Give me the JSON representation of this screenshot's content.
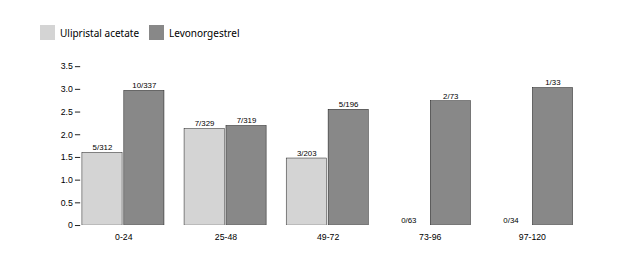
{
  "chart_data": {
    "type": "bar",
    "categories": [
      "0-24",
      "25-48",
      "49-72",
      "73-96",
      "97-120"
    ],
    "series": [
      {
        "name": "Ulipristal acetate",
        "color": "#d4d4d4",
        "values": [
          1.6026,
          2.1277,
          1.4778,
          0.0,
          0.0
        ],
        "value_labels": [
          "5/312",
          "7/329",
          "3/203",
          "0/63",
          "0/34"
        ]
      },
      {
        "name": "Levonorgestrel",
        "color": "#888888",
        "values": [
          2.9674,
          2.1942,
          2.551,
          2.7397,
          3.0303
        ],
        "value_labels": [
          "10/337",
          "7/319",
          "5/196",
          "2/73",
          "1/33"
        ]
      }
    ],
    "ylim": [
      0,
      3.5
    ],
    "yticks": [
      0,
      0.5,
      {
        "value": 1.0,
        "label": "1.0"
      },
      1.5,
      {
        "value": 2.0,
        "label": "2.0"
      },
      2.5,
      {
        "value": 3.0,
        "label": "3.0"
      },
      3.5
    ],
    "grid": false,
    "legend": "top",
    "data_labels": true
  }
}
